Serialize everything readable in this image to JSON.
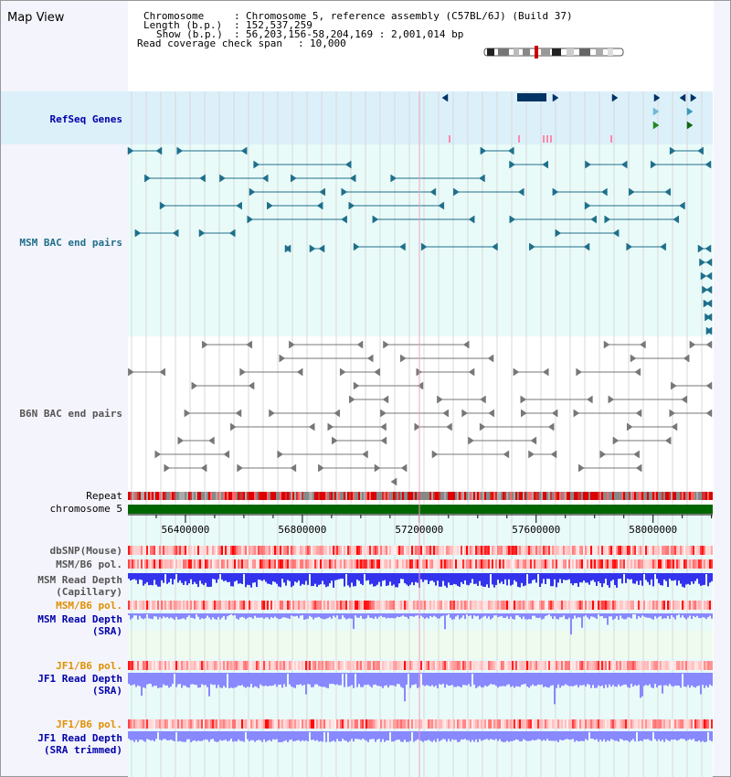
{
  "app_title": "Map View",
  "info": {
    "chromosome_label": "Chromosome",
    "chromosome_value": "Chromosome 5, reference assembly (C57BL/6J) (Build 37)",
    "length_label": "Length (b.p.)",
    "length_value": "152,537,259",
    "show_label": "Show (b.p.)",
    "show_value": "56,203,156-58,204,169 : 2,001,014 bp",
    "span_label": "Read coverage check span",
    "span_value": "10,000"
  },
  "view": {
    "start": 56203156,
    "end": 58204169
  },
  "axis_ticks": [
    "56400000",
    "56800000",
    "57200000",
    "57600000",
    "58000000"
  ],
  "tracks": {
    "refseq": "RefSeq Genes",
    "msm_bac": "MSM BAC end pairs",
    "b6n_bac": "B6N BAC end pairs",
    "repeat": "Repeat",
    "chromosome": "chromosome 5",
    "dbsnp": "dbSNP(Mouse)",
    "msm_b6_pol": "MSM/B6 pol.",
    "msm_depth_cap": "MSM Read Depth",
    "msm_depth_cap_sub": "(Capillary)",
    "msm_b6_pol2": "MSM/B6 pol.",
    "msm_depth_sra": "MSM Read Depth",
    "msm_depth_sra_sub": "(SRA)",
    "jf1_b6_pol": "JF1/B6 pol.",
    "jf1_depth_sra": "JF1 Read Depth",
    "jf1_depth_sra_sub": "(SRA)",
    "jf1_b6_pol2": "JF1/B6 pol.",
    "jf1_depth_trim": "JF1 Read Depth",
    "jf1_depth_trim_sub": "(SRA trimmed)"
  },
  "colors": {
    "refseq_bg": "#dcf0fa",
    "msm_bg": "#e9fbf9",
    "gene_blue": "#003366",
    "bac_teal": "#1f6f8b",
    "bac_gray": "#777777",
    "chromosome_green": "#006600",
    "depth_blue": "#3333ee",
    "depth_light": "#8888ff",
    "label_navy": "#0000aa",
    "label_teal": "#1f6f8b",
    "label_gray": "#555555",
    "label_orange": "#e09000"
  }
}
